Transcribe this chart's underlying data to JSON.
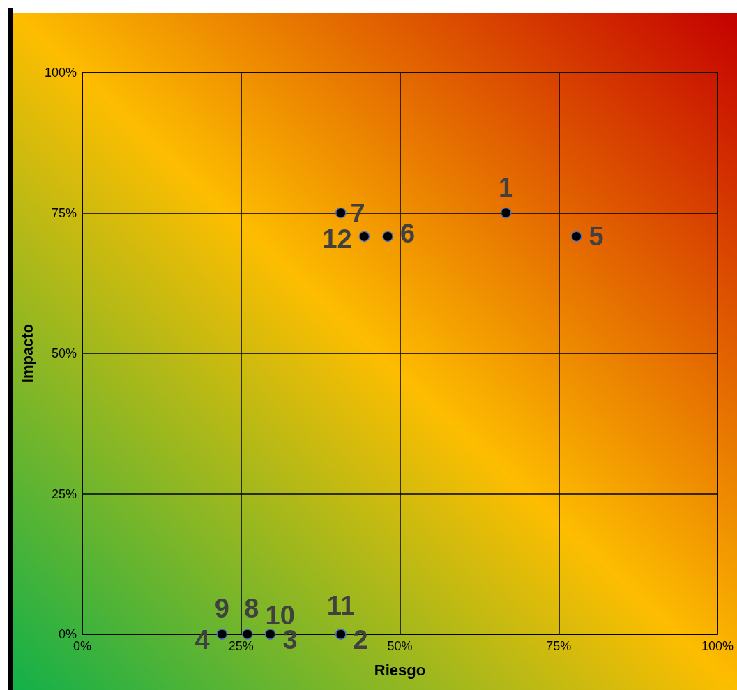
{
  "chart_data": {
    "type": "scatter",
    "xlabel": "Riesgo",
    "ylabel": "Impacto",
    "series": [
      {
        "name": "1",
        "color": "#000000",
        "x": [
          66.7
        ],
        "values": [
          75
        ]
      },
      {
        "name": "2",
        "color": "#000000",
        "x": [
          40.7
        ],
        "values": [
          0
        ]
      },
      {
        "name": "3",
        "color": "#000000",
        "x": [
          29.6
        ],
        "values": [
          0
        ]
      },
      {
        "name": "4",
        "color": "#000000",
        "x": [
          22.0
        ],
        "values": [
          0
        ]
      },
      {
        "name": "5",
        "color": "#000000",
        "x": [
          77.8
        ],
        "values": [
          70.8
        ]
      },
      {
        "name": "6",
        "color": "#000000",
        "x": [
          48.1
        ],
        "values": [
          70.8
        ]
      },
      {
        "name": "7",
        "color": "#000000",
        "x": [
          40.7
        ],
        "values": [
          75
        ]
      },
      {
        "name": "8",
        "color": "#000000",
        "x": [
          26.0
        ],
        "values": [
          0
        ]
      },
      {
        "name": "9",
        "color": "#000000",
        "x": [
          22.0
        ],
        "values": [
          0
        ]
      },
      {
        "name": "10",
        "color": "#000000",
        "x": [
          29.6
        ],
        "values": [
          0
        ]
      },
      {
        "name": "11",
        "color": "#000000",
        "x": [
          40.7
        ],
        "values": [
          0
        ]
      },
      {
        "name": "12",
        "color": "#000000",
        "x": [
          44.4
        ],
        "values": [
          70.8
        ]
      }
    ],
    "xlim": [
      0,
      100
    ],
    "ylim": [
      0,
      100
    ],
    "xticks": [
      {
        "value": 0,
        "label": "0%"
      },
      {
        "value": 25,
        "label": "25%"
      },
      {
        "value": 50,
        "label": "50%"
      },
      {
        "value": 75,
        "label": "75%"
      },
      {
        "value": 100,
        "label": "100%"
      }
    ],
    "yticks": [
      {
        "value": 0,
        "label": "0%"
      },
      {
        "value": 25,
        "label": "25%"
      },
      {
        "value": 50,
        "label": "50%"
      },
      {
        "value": 75,
        "label": "75%"
      },
      {
        "value": 100,
        "label": "100%"
      }
    ],
    "grid": true,
    "marker": "circle",
    "legend": false
  }
}
